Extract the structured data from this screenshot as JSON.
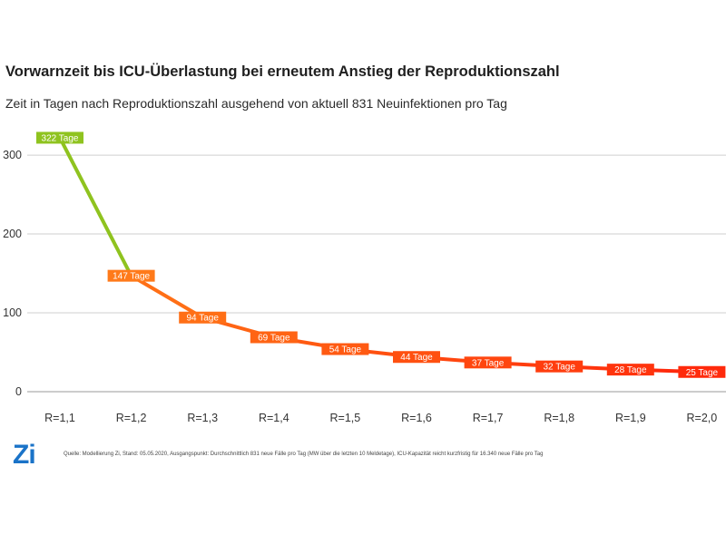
{
  "chart_data": {
    "type": "line",
    "title": "Vorwarnzeit bis ICU-Überlastung bei erneutem Anstieg der Reproduktionszahl",
    "subtitle": "Zeit in Tagen nach Reproduktionszahl ausgehend von aktuell 831 Neuinfektionen pro Tag",
    "categories": [
      "R=1,1",
      "R=1,2",
      "R=1,3",
      "R=1,4",
      "R=1,5",
      "R=1,6",
      "R=1,7",
      "R=1,8",
      "R=1,9",
      "R=2,0"
    ],
    "values": [
      322,
      147,
      94,
      69,
      54,
      44,
      37,
      32,
      28,
      25
    ],
    "point_labels": [
      "322 Tage",
      "147 Tage",
      "94 Tage",
      "69 Tage",
      "54 Tage",
      "44 Tage",
      "37 Tage",
      "32 Tage",
      "28 Tage",
      "25 Tage"
    ],
    "point_colors": [
      "#8fc31f",
      "#ff7a1a",
      "#ff6f16",
      "#ff6414",
      "#ff5a12",
      "#ff5010",
      "#ff460f",
      "#ff3d0e",
      "#ff340d",
      "#ff2a0c"
    ],
    "ylim": [
      0,
      330
    ],
    "yticks": [
      0,
      100,
      200,
      300
    ],
    "grid": true,
    "xlabel": "",
    "ylabel": ""
  },
  "logo_text": "Zi",
  "source_text": "Quelle: Modellierung Zi, Stand: 05.05.2020, Ausgangspunkt: Durchschnittlich 831 neue Fälle pro Tag (MW über die letzten 10 Meldetage), ICU-Kapazität reicht kurzfristig für 16.340 neue Fälle pro Tag",
  "colors": {
    "grid": "#cfcfcf",
    "axis": "#999999",
    "green": "#8fc31f",
    "orange": "#ff7a1a",
    "red": "#ff2a0c",
    "logo": "#1a73c8"
  }
}
